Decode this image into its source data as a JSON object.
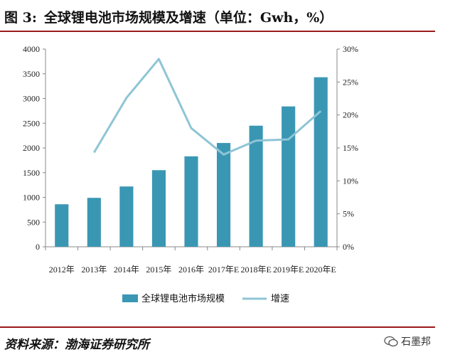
{
  "header": {
    "figure_label": "图 3:",
    "title_text": "全球锂电池市场规模及增速（单位：Gwh，%）"
  },
  "footer": {
    "source": "资料来源：渤海证券研究所",
    "watermark": "石墨邦"
  },
  "colors": {
    "bar": "#3a97b3",
    "line": "#8ec5d5",
    "rule": "#9a1b1b"
  },
  "chart_data": {
    "type": "bar",
    "categories": [
      "2012年",
      "2013年",
      "2014年",
      "2015年",
      "2016年",
      "2017年E",
      "2018年E",
      "2019年E",
      "2020年E"
    ],
    "series": [
      {
        "name": "全球锂电池市场规模",
        "type": "bar",
        "axis": "left",
        "values": [
          860,
          990,
          1220,
          1550,
          1830,
          2100,
          2450,
          2840,
          3430
        ]
      },
      {
        "name": "增速",
        "type": "line",
        "axis": "right",
        "values": [
          null,
          14.3,
          22.6,
          28.5,
          18.0,
          14.0,
          16.1,
          16.3,
          20.6
        ]
      }
    ],
    "ylim_left": [
      0,
      4000
    ],
    "yticks_left": [
      "0",
      "500",
      "1000",
      "1500",
      "2000",
      "2500",
      "3000",
      "3500",
      "4000"
    ],
    "ylim_right": [
      0,
      30
    ],
    "yticks_right": [
      "0%",
      "5%",
      "10%",
      "15%",
      "20%",
      "25%",
      "30%"
    ],
    "legend_position": "bottom"
  }
}
